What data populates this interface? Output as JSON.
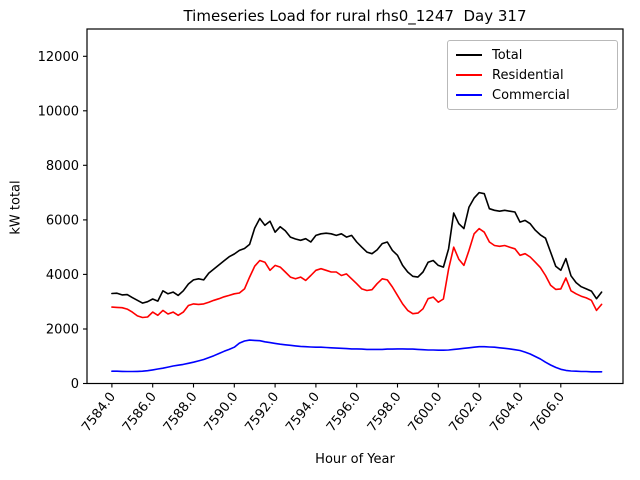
{
  "chart_data": {
    "type": "line",
    "title": "Timeseries Load for rural rhs0_1247  Day 317",
    "xlabel": "Hour of Year",
    "ylabel": "kW total",
    "xlim": [
      7582.78,
      7609.05
    ],
    "ylim": [
      0,
      13000
    ],
    "x_ticks": [
      7584,
      7586,
      7588,
      7590,
      7592,
      7594,
      7596,
      7598,
      7600,
      7602,
      7604,
      7606
    ],
    "x_tick_labels": [
      "7584.0",
      "7586.0",
      "7588.0",
      "7590.0",
      "7592.0",
      "7594.0",
      "7596.0",
      "7598.0",
      "7600.0",
      "7602.0",
      "7604.0",
      "7606.0"
    ],
    "y_ticks": [
      0,
      2000,
      4000,
      6000,
      8000,
      10000,
      12000
    ],
    "y_tick_labels": [
      "0",
      "2000",
      "4000",
      "6000",
      "8000",
      "10000",
      "12000"
    ],
    "grid": false,
    "legend_position": "upper right",
    "x_start": 7584.0,
    "x_step": 0.25,
    "series": [
      {
        "name": "Total",
        "color": "#000000",
        "values": [
          3300,
          3310,
          3250,
          3260,
          3150,
          3050,
          2950,
          3000,
          3100,
          3020,
          3400,
          3290,
          3350,
          3230,
          3400,
          3650,
          3800,
          3840,
          3800,
          4050,
          4200,
          4350,
          4500,
          4650,
          4750,
          4880,
          4950,
          5100,
          5700,
          6050,
          5800,
          5950,
          5550,
          5750,
          5600,
          5370,
          5300,
          5250,
          5310,
          5190,
          5430,
          5490,
          5510,
          5490,
          5430,
          5490,
          5370,
          5430,
          5190,
          5000,
          4820,
          4760,
          4900,
          5130,
          5190,
          4880,
          4700,
          4330,
          4090,
          3930,
          3900,
          4090,
          4450,
          4510,
          4330,
          4270,
          4940,
          6250,
          5860,
          5680,
          6470,
          6800,
          7000,
          6960,
          6410,
          6350,
          6320,
          6350,
          6320,
          6290,
          5920,
          5980,
          5860,
          5620,
          5450,
          5330,
          4820,
          4300,
          4150,
          4580,
          3950,
          3700,
          3550,
          3470,
          3390,
          3110,
          3350
        ]
      },
      {
        "name": "Residential",
        "color": "#ff0000",
        "values": [
          2800,
          2790,
          2780,
          2730,
          2620,
          2480,
          2420,
          2440,
          2620,
          2500,
          2680,
          2550,
          2620,
          2500,
          2620,
          2860,
          2920,
          2900,
          2920,
          2980,
          3050,
          3110,
          3180,
          3230,
          3290,
          3320,
          3470,
          3900,
          4300,
          4510,
          4450,
          4150,
          4330,
          4270,
          4090,
          3900,
          3840,
          3900,
          3780,
          3960,
          4150,
          4210,
          4150,
          4090,
          4090,
          3960,
          4020,
          3840,
          3660,
          3470,
          3410,
          3440,
          3660,
          3840,
          3800,
          3540,
          3230,
          2920,
          2680,
          2560,
          2580,
          2740,
          3110,
          3170,
          2980,
          3100,
          4200,
          5000,
          4560,
          4330,
          4880,
          5490,
          5680,
          5550,
          5190,
          5060,
          5030,
          5060,
          5000,
          4940,
          4700,
          4760,
          4640,
          4450,
          4250,
          3960,
          3600,
          3450,
          3470,
          3870,
          3400,
          3290,
          3200,
          3140,
          3050,
          2680,
          2900
        ]
      },
      {
        "name": "Commercial",
        "color": "#0000ff",
        "values": [
          450,
          450,
          445,
          440,
          440,
          445,
          450,
          470,
          500,
          530,
          560,
          600,
          640,
          670,
          700,
          740,
          780,
          830,
          880,
          950,
          1020,
          1100,
          1180,
          1250,
          1330,
          1480,
          1560,
          1590,
          1580,
          1570,
          1530,
          1500,
          1470,
          1440,
          1420,
          1400,
          1380,
          1360,
          1350,
          1340,
          1330,
          1330,
          1320,
          1310,
          1300,
          1290,
          1280,
          1270,
          1270,
          1260,
          1250,
          1250,
          1250,
          1250,
          1260,
          1260,
          1270,
          1270,
          1260,
          1260,
          1250,
          1240,
          1230,
          1230,
          1220,
          1220,
          1230,
          1250,
          1270,
          1290,
          1310,
          1330,
          1350,
          1350,
          1340,
          1330,
          1310,
          1290,
          1270,
          1240,
          1210,
          1150,
          1080,
          990,
          900,
          780,
          680,
          590,
          520,
          480,
          460,
          450,
          440,
          440,
          430,
          430,
          430
        ]
      }
    ]
  }
}
